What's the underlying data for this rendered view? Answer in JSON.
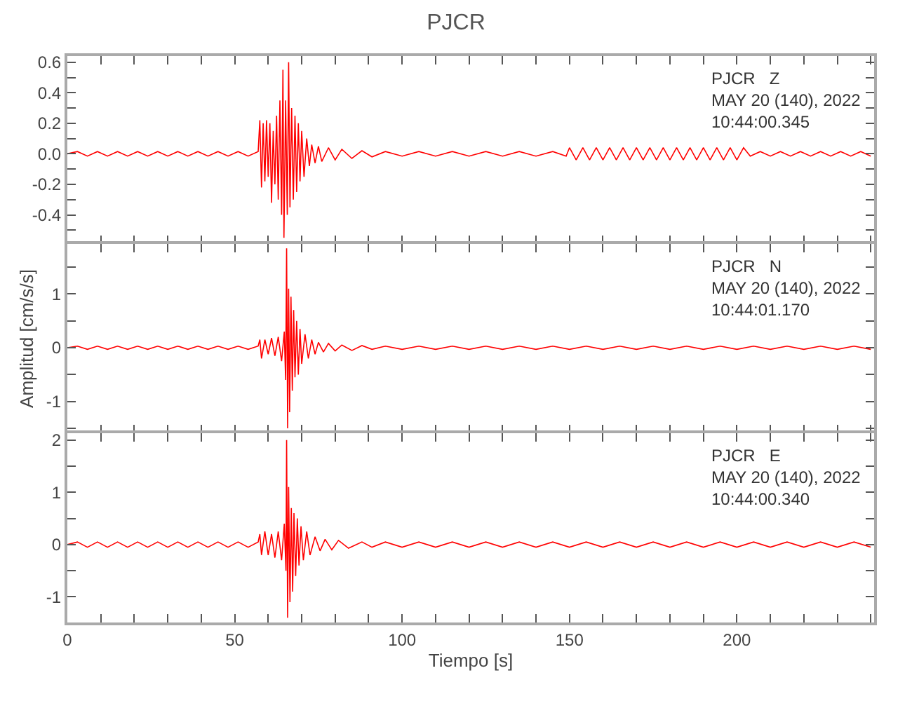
{
  "chart_data": [
    {
      "type": "line",
      "title": "PJCR",
      "annotations": [
        "PJCR   Z",
        "MAY 20 (140), 2022",
        "10:44:00.345"
      ],
      "xlim": [
        0,
        241
      ],
      "ylim": [
        -0.59,
        0.64
      ],
      "tick_labels": "y",
      "xticks": [
        0,
        {
          "value": 10,
          "label": null
        },
        {
          "value": 20,
          "label": null
        },
        {
          "value": 30,
          "label": null
        },
        {
          "value": 40,
          "label": null
        },
        50,
        {
          "value": 60,
          "label": null
        },
        {
          "value": 70,
          "label": null
        },
        {
          "value": 80,
          "label": null
        },
        {
          "value": 90,
          "label": null
        },
        100,
        {
          "value": 110,
          "label": null
        },
        {
          "value": 120,
          "label": null
        },
        {
          "value": 130,
          "label": null
        },
        {
          "value": 140,
          "label": null
        },
        150,
        {
          "value": 160,
          "label": null
        },
        {
          "value": 170,
          "label": null
        },
        {
          "value": 180,
          "label": null
        },
        {
          "value": 190,
          "label": null
        },
        200,
        {
          "value": 210,
          "label": null
        },
        {
          "value": 220,
          "label": null
        },
        {
          "value": 230,
          "label": null
        },
        {
          "value": 240,
          "label": null
        }
      ],
      "yticks": [
        {
          "value": -0.5,
          "label": null
        },
        -0.4,
        {
          "value": -0.3,
          "label": null
        },
        -0.2,
        {
          "value": -0.1,
          "label": null
        },
        {
          "value": 0,
          "label": "0.0"
        },
        {
          "value": 0.1,
          "label": null
        },
        0.2,
        {
          "value": 0.3,
          "label": null
        },
        0.4,
        {
          "value": 0.5,
          "label": null
        },
        0.6
      ],
      "series": [
        {
          "color": "#ff0000",
          "x": [
            0,
            3,
            6,
            9,
            12,
            15,
            18,
            21,
            24,
            27,
            30,
            33,
            36,
            39,
            42,
            45,
            48,
            51,
            54,
            57,
            57.5,
            58,
            58.5,
            59,
            59.5,
            60,
            60.5,
            61,
            61.5,
            62,
            62.5,
            63,
            63.5,
            64,
            64.4,
            64.7,
            65.2,
            65.7,
            66.1,
            66.5,
            67,
            67.5,
            68,
            68.5,
            69,
            69.5,
            70,
            70.7,
            71.5,
            72.3,
            73,
            74,
            75,
            76,
            78,
            80,
            82,
            85,
            88,
            91,
            95,
            100,
            105,
            110,
            115,
            120,
            125,
            130,
            135,
            140,
            145,
            149,
            150,
            152,
            154,
            156,
            158,
            160,
            162,
            164,
            166,
            168,
            170,
            172,
            174,
            176,
            178,
            180,
            182,
            184,
            186,
            188,
            190,
            192,
            194,
            196,
            198,
            200,
            202,
            204,
            207,
            210,
            213,
            216,
            219,
            222,
            225,
            228,
            231,
            234,
            237,
            240
          ],
          "values": [
            0,
            0.015,
            -0.015,
            0.015,
            -0.015,
            0.015,
            -0.015,
            0.015,
            -0.015,
            0.015,
            -0.015,
            0.015,
            -0.015,
            0.015,
            -0.015,
            0.015,
            -0.015,
            0.015,
            -0.015,
            0.015,
            0.22,
            -0.22,
            0.2,
            -0.18,
            0.22,
            -0.15,
            0.2,
            -0.32,
            0.15,
            -0.2,
            0.25,
            -0.3,
            0.35,
            -0.4,
            0.55,
            -0.55,
            0.35,
            -0.4,
            0.6,
            -0.35,
            0.3,
            -0.3,
            0.25,
            -0.25,
            0.2,
            -0.18,
            0.15,
            -0.15,
            0.1,
            -0.08,
            0.06,
            -0.06,
            0.05,
            -0.05,
            0.04,
            -0.04,
            0.03,
            -0.03,
            0.02,
            -0.02,
            0.015,
            -0.015,
            0.015,
            -0.015,
            0.015,
            -0.015,
            0.015,
            -0.015,
            0.015,
            -0.015,
            0.015,
            -0.015,
            0.04,
            -0.04,
            0.04,
            -0.04,
            0.04,
            -0.04,
            0.04,
            -0.04,
            0.04,
            -0.04,
            0.04,
            -0.04,
            0.04,
            -0.04,
            0.04,
            -0.04,
            0.04,
            -0.04,
            0.04,
            -0.04,
            0.04,
            -0.04,
            0.04,
            -0.04,
            0.04,
            -0.04,
            0.04,
            -0.015,
            0.015,
            -0.015,
            0.015,
            -0.015,
            0.015,
            -0.015,
            0.015,
            -0.015,
            0.015,
            -0.015,
            0.015,
            -0.015
          ]
        }
      ]
    },
    {
      "type": "line",
      "ylabel": "Amplitud [cm/s/s]",
      "annotations": [
        "PJCR   N",
        "MAY 20 (140), 2022",
        "10:44:01.170"
      ],
      "xlim": [
        0,
        241
      ],
      "ylim": [
        -1.59,
        1.93
      ],
      "tick_labels": "y",
      "xticks": [
        0,
        {
          "value": 10,
          "label": null
        },
        {
          "value": 20,
          "label": null
        },
        {
          "value": 30,
          "label": null
        },
        {
          "value": 40,
          "label": null
        },
        50,
        {
          "value": 60,
          "label": null
        },
        {
          "value": 70,
          "label": null
        },
        {
          "value": 80,
          "label": null
        },
        {
          "value": 90,
          "label": null
        },
        100,
        {
          "value": 110,
          "label": null
        },
        {
          "value": 120,
          "label": null
        },
        {
          "value": 130,
          "label": null
        },
        {
          "value": 140,
          "label": null
        },
        150,
        {
          "value": 160,
          "label": null
        },
        {
          "value": 170,
          "label": null
        },
        {
          "value": 180,
          "label": null
        },
        {
          "value": 190,
          "label": null
        },
        200,
        {
          "value": 210,
          "label": null
        },
        {
          "value": 220,
          "label": null
        },
        {
          "value": 230,
          "label": null
        },
        {
          "value": 240,
          "label": null
        }
      ],
      "yticks": [
        {
          "value": -1.5,
          "label": null
        },
        -1,
        {
          "value": -0.5,
          "label": null
        },
        0,
        {
          "value": 0.5,
          "label": null
        },
        1,
        {
          "value": 1.5,
          "label": null
        }
      ],
      "series": [
        {
          "color": "#ff0000",
          "x": [
            0,
            3,
            6,
            9,
            12,
            15,
            18,
            21,
            24,
            27,
            30,
            33,
            36,
            39,
            42,
            45,
            48,
            51,
            54,
            57,
            57.5,
            58,
            59,
            60,
            61,
            62,
            63,
            64,
            64.8,
            65.2,
            65.5,
            65.8,
            66.1,
            66.4,
            66.8,
            67.2,
            67.6,
            68,
            68.5,
            69,
            69.5,
            70,
            71,
            72,
            73,
            74,
            75,
            76.5,
            78,
            80,
            82,
            85,
            88,
            91,
            95,
            100,
            105,
            110,
            115,
            120,
            125,
            130,
            135,
            140,
            145,
            150,
            155,
            160,
            165,
            170,
            175,
            180,
            185,
            190,
            195,
            200,
            205,
            210,
            215,
            220,
            225,
            230,
            235,
            240
          ],
          "values": [
            0,
            0.03,
            -0.03,
            0.03,
            -0.03,
            0.03,
            -0.03,
            0.03,
            -0.03,
            0.03,
            -0.03,
            0.03,
            -0.03,
            0.03,
            -0.03,
            0.03,
            -0.03,
            0.03,
            -0.03,
            0.03,
            0.15,
            -0.2,
            0.15,
            -0.12,
            0.18,
            -0.15,
            0.2,
            -0.25,
            0.3,
            -0.6,
            1.85,
            -1.5,
            1.1,
            -1.2,
            0.95,
            -0.8,
            0.7,
            -0.55,
            0.5,
            -0.5,
            0.35,
            -0.3,
            0.25,
            -0.2,
            0.15,
            -0.12,
            0.1,
            -0.08,
            0.08,
            -0.06,
            0.05,
            -0.05,
            0.04,
            -0.03,
            0.03,
            -0.03,
            0.03,
            -0.03,
            0.03,
            -0.03,
            0.03,
            -0.03,
            0.03,
            -0.03,
            0.03,
            -0.03,
            0.03,
            -0.03,
            0.03,
            -0.03,
            0.03,
            -0.03,
            0.03,
            -0.03,
            0.03,
            -0.03,
            0.03,
            -0.03,
            0.03,
            -0.03,
            0.03,
            -0.03,
            0.03,
            -0.03
          ]
        }
      ]
    },
    {
      "type": "line",
      "xlabel": "Tiempo [s]",
      "annotations": [
        "PJCR   E",
        "MAY 20 (140), 2022",
        "10:44:00.340"
      ],
      "xlim": [
        0,
        241
      ],
      "ylim": [
        -1.49,
        2.13
      ],
      "xticks": [
        0,
        {
          "value": 10,
          "label": null
        },
        {
          "value": 20,
          "label": null
        },
        {
          "value": 30,
          "label": null
        },
        {
          "value": 40,
          "label": null
        },
        50,
        {
          "value": 60,
          "label": null
        },
        {
          "value": 70,
          "label": null
        },
        {
          "value": 80,
          "label": null
        },
        {
          "value": 90,
          "label": null
        },
        100,
        {
          "value": 110,
          "label": null
        },
        {
          "value": 120,
          "label": null
        },
        {
          "value": 130,
          "label": null
        },
        {
          "value": 140,
          "label": null
        },
        150,
        {
          "value": 160,
          "label": null
        },
        {
          "value": 170,
          "label": null
        },
        {
          "value": 180,
          "label": null
        },
        {
          "value": 190,
          "label": null
        },
        200,
        {
          "value": 210,
          "label": null
        },
        {
          "value": 220,
          "label": null
        },
        {
          "value": 230,
          "label": null
        },
        {
          "value": 240,
          "label": null
        }
      ],
      "yticks": [
        -1,
        {
          "value": -0.5,
          "label": null
        },
        0,
        {
          "value": 0.5,
          "label": null
        },
        1,
        {
          "value": 1.5,
          "label": null
        },
        2
      ],
      "series": [
        {
          "color": "#ff0000",
          "x": [
            0,
            3,
            6,
            9,
            12,
            15,
            18,
            21,
            24,
            27,
            30,
            33,
            36,
            39,
            42,
            45,
            48,
            51,
            54,
            57,
            57.5,
            58,
            59,
            60,
            61,
            62,
            63,
            64,
            64.8,
            65.3,
            65.5,
            65.8,
            66.1,
            66.5,
            66.9,
            67.3,
            67.7,
            68.2,
            68.7,
            69.2,
            69.8,
            70.5,
            71.5,
            72.5,
            74,
            75.5,
            77,
            79,
            81,
            84,
            88,
            91,
            95,
            100,
            105,
            110,
            115,
            120,
            125,
            130,
            135,
            140,
            145,
            150,
            155,
            160,
            165,
            170,
            175,
            180,
            185,
            190,
            195,
            200,
            205,
            210,
            215,
            220,
            225,
            230,
            235,
            240
          ],
          "values": [
            0,
            0.05,
            -0.05,
            0.05,
            -0.05,
            0.05,
            -0.05,
            0.05,
            -0.05,
            0.05,
            -0.05,
            0.05,
            -0.05,
            0.05,
            -0.05,
            0.05,
            -0.05,
            0.05,
            -0.05,
            0.05,
            0.2,
            -0.2,
            0.25,
            -0.2,
            0.2,
            -0.25,
            0.25,
            -0.3,
            0.4,
            -0.5,
            2.0,
            -1.4,
            1.1,
            -1.1,
            0.7,
            -0.9,
            0.6,
            -0.6,
            0.5,
            -0.4,
            0.35,
            -0.3,
            0.25,
            -0.2,
            0.15,
            -0.12,
            0.1,
            -0.1,
            0.08,
            -0.07,
            0.05,
            -0.05,
            0.05,
            -0.05,
            0.05,
            -0.05,
            0.05,
            -0.05,
            0.05,
            -0.05,
            0.05,
            -0.05,
            0.05,
            -0.05,
            0.05,
            -0.05,
            0.05,
            -0.05,
            0.05,
            -0.05,
            0.05,
            -0.05,
            0.05,
            -0.05,
            0.05,
            -0.05,
            0.05,
            -0.05,
            0.05,
            -0.05,
            0.05,
            -0.05
          ]
        }
      ]
    }
  ]
}
